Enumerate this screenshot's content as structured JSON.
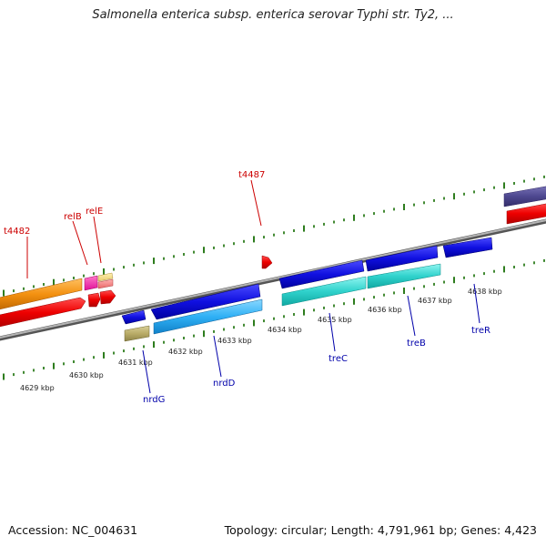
{
  "title": "Salmonella enterica subsp. enterica serovar Typhi str. Ty2, ...",
  "footer": {
    "accession": "Accession: NC_004631",
    "topology": "Topology: circular; Length: 4,791,961 bp; Genes: 4,423"
  },
  "colors": {
    "tick": "#2e7d1e",
    "backbone": "#808080",
    "label_red": "#cc0000",
    "label_blue": "#0000aa"
  },
  "kbp_labels": [
    "4629 kbp",
    "4630 kbp",
    "4631 kbp",
    "4632 kbp",
    "4633 kbp",
    "4634 kbp",
    "4635 kbp",
    "4636 kbp",
    "4637 kbp",
    "4638 kbp"
  ],
  "upper_genes": [
    {
      "name": "t4482",
      "color": "#cc0000"
    },
    {
      "name": "relB",
      "color": "#cc0000"
    },
    {
      "name": "relE",
      "color": "#cc0000"
    },
    {
      "name": "t4487",
      "color": "#cc0000"
    }
  ],
  "lower_genes": [
    {
      "name": "nrdG",
      "color": "#0000aa"
    },
    {
      "name": "nrdD",
      "color": "#0000aa"
    },
    {
      "name": "treC",
      "color": "#0000aa"
    },
    {
      "name": "treB",
      "color": "#0000aa"
    },
    {
      "name": "treR",
      "color": "#0000aa"
    }
  ]
}
